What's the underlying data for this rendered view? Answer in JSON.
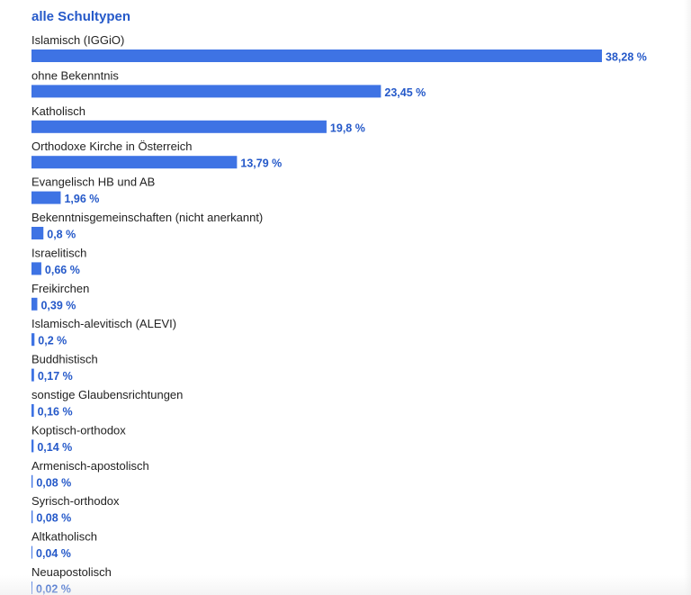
{
  "colors": {
    "bar": "#3e73e4",
    "label_value": "#2559c9",
    "title": "#2559c9",
    "category_text": "#222222"
  },
  "chart_data": {
    "type": "bar",
    "orientation": "horizontal",
    "title": "alle Schultypen",
    "xlim": [
      0,
      38.28
    ],
    "grid": false,
    "legend": "none",
    "unit": "%",
    "categories": [
      "Islamisch (IGGiO)",
      "ohne Bekenntnis",
      "Katholisch",
      "Orthodoxe Kirche in Österreich",
      "Evangelisch HB und AB",
      "Bekenntnisgemeinschaften (nicht anerkannt)",
      "Israelitisch",
      "Freikirchen",
      "Islamisch-alevitisch (ALEVI)",
      "Buddhistisch",
      "sonstige Glaubensrichtungen",
      "Koptisch-orthodox",
      "Armenisch-apostolisch",
      "Syrisch-orthodox",
      "Altkatholisch",
      "Neuapostolisch"
    ],
    "values": [
      38.28,
      23.45,
      19.8,
      13.79,
      1.96,
      0.8,
      0.66,
      0.39,
      0.2,
      0.17,
      0.16,
      0.14,
      0.08,
      0.08,
      0.04,
      0.02
    ],
    "value_labels": [
      "38,28 %",
      "23,45 %",
      "19,8 %",
      "13,79 %",
      "1,96 %",
      "0,8 %",
      "0,66 %",
      "0,39 %",
      "0,2 %",
      "0,17 %",
      "0,16 %",
      "0,14 %",
      "0,08 %",
      "0,08 %",
      "0,04 %",
      "0,02 %"
    ]
  }
}
